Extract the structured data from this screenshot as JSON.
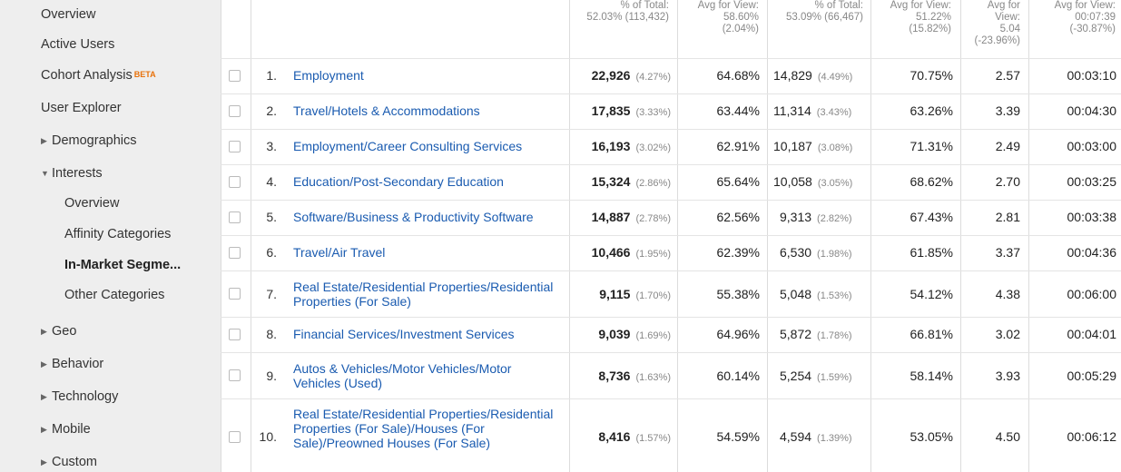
{
  "sidebar": {
    "items": [
      {
        "label": "Overview"
      },
      {
        "label": "Active Users"
      },
      {
        "label": "Cohort Analysis",
        "badge": "BETA"
      },
      {
        "label": "User Explorer"
      },
      {
        "label": "Demographics"
      },
      {
        "label": "Interests"
      },
      {
        "label": "Overview"
      },
      {
        "label": "Affinity Categories"
      },
      {
        "label": "In-Market Segme..."
      },
      {
        "label": "Other Categories"
      },
      {
        "label": "Geo"
      },
      {
        "label": "Behavior"
      },
      {
        "label": "Technology"
      },
      {
        "label": "Mobile"
      },
      {
        "label": "Custom"
      }
    ],
    "active_item": "In-Market Segme..."
  },
  "table": {
    "header": {
      "col1": [
        "% of Total:",
        "52.03% (113,432)"
      ],
      "col2": [
        "Avg for View:",
        "58.60%",
        "(2.04%)"
      ],
      "col3": [
        "% of Total:",
        "53.09% (66,467)"
      ],
      "col4": [
        "Avg for View:",
        "51.22%",
        "(15.82%)"
      ],
      "col5": [
        "Avg for",
        "View:",
        "5.04",
        "(-23.96%)"
      ],
      "col6": [
        "Avg for View:",
        "00:07:39",
        "(-30.87%)"
      ]
    },
    "rows": [
      {
        "num": "1.",
        "name": "Employment",
        "sessions": "22,926",
        "sessions_pct": "(4.27%)",
        "new_sessions": "64.68%",
        "new_users": "14,829",
        "new_users_pct": "(4.49%)",
        "bounce": "70.75%",
        "pages": "2.57",
        "duration": "00:03:10"
      },
      {
        "num": "2.",
        "name": "Travel/Hotels & Accommodations",
        "sessions": "17,835",
        "sessions_pct": "(3.33%)",
        "new_sessions": "63.44%",
        "new_users": "11,314",
        "new_users_pct": "(3.43%)",
        "bounce": "63.26%",
        "pages": "3.39",
        "duration": "00:04:30"
      },
      {
        "num": "3.",
        "name": "Employment/Career Consulting Services",
        "sessions": "16,193",
        "sessions_pct": "(3.02%)",
        "new_sessions": "62.91%",
        "new_users": "10,187",
        "new_users_pct": "(3.08%)",
        "bounce": "71.31%",
        "pages": "2.49",
        "duration": "00:03:00"
      },
      {
        "num": "4.",
        "name": "Education/Post-Secondary Education",
        "sessions": "15,324",
        "sessions_pct": "(2.86%)",
        "new_sessions": "65.64%",
        "new_users": "10,058",
        "new_users_pct": "(3.05%)",
        "bounce": "68.62%",
        "pages": "2.70",
        "duration": "00:03:25"
      },
      {
        "num": "5.",
        "name": "Software/Business & Productivity Software",
        "sessions": "14,887",
        "sessions_pct": "(2.78%)",
        "new_sessions": "62.56%",
        "new_users": "9,313",
        "new_users_pct": "(2.82%)",
        "bounce": "67.43%",
        "pages": "2.81",
        "duration": "00:03:38"
      },
      {
        "num": "6.",
        "name": "Travel/Air Travel",
        "sessions": "10,466",
        "sessions_pct": "(1.95%)",
        "new_sessions": "62.39%",
        "new_users": "6,530",
        "new_users_pct": "(1.98%)",
        "bounce": "61.85%",
        "pages": "3.37",
        "duration": "00:04:36"
      },
      {
        "num": "7.",
        "name": "Real Estate/Residential Properties/Residential Properties (For Sale)",
        "sessions": "9,115",
        "sessions_pct": "(1.70%)",
        "new_sessions": "55.38%",
        "new_users": "5,048",
        "new_users_pct": "(1.53%)",
        "bounce": "54.12%",
        "pages": "4.38",
        "duration": "00:06:00"
      },
      {
        "num": "8.",
        "name": "Financial Services/Investment Services",
        "sessions": "9,039",
        "sessions_pct": "(1.69%)",
        "new_sessions": "64.96%",
        "new_users": "5,872",
        "new_users_pct": "(1.78%)",
        "bounce": "66.81%",
        "pages": "3.02",
        "duration": "00:04:01"
      },
      {
        "num": "9.",
        "name": "Autos & Vehicles/Motor Vehicles/Motor Vehicles (Used)",
        "sessions": "8,736",
        "sessions_pct": "(1.63%)",
        "new_sessions": "60.14%",
        "new_users": "5,254",
        "new_users_pct": "(1.59%)",
        "bounce": "58.14%",
        "pages": "3.93",
        "duration": "00:05:29"
      },
      {
        "num": "10.",
        "name": "Real Estate/Residential Properties/Residential Properties (For Sale)/Houses (For Sale)/Preowned Houses (For Sale)",
        "sessions": "8,416",
        "sessions_pct": "(1.57%)",
        "new_sessions": "54.59%",
        "new_users": "4,594",
        "new_users_pct": "(1.39%)",
        "bounce": "53.05%",
        "pages": "4.50",
        "duration": "00:06:12"
      }
    ]
  },
  "colors": {
    "link": "#1a5bb0",
    "sidebar_bg": "#eeeeee",
    "beta": "#e8710a"
  }
}
